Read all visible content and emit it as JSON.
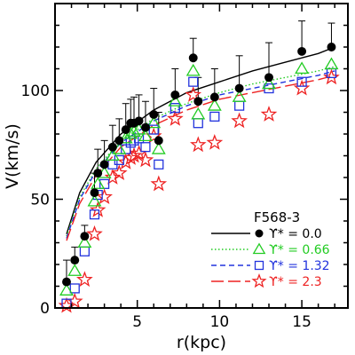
{
  "chart_data": {
    "type": "scatter",
    "title": "",
    "xlabel": "r(kpc)",
    "ylabel": "V(km/s)",
    "xlim": [
      0,
      17.8
    ],
    "ylim": [
      0,
      140
    ],
    "x_ticks": [
      5,
      10,
      15
    ],
    "y_ticks": [
      0,
      50,
      100
    ],
    "grid": false,
    "legend": {
      "placement": "bottom-right",
      "title": "F568-3",
      "entries": [
        {
          "label": "ϒ* = 0.0",
          "color": "#000000",
          "marker": "filled-circle",
          "line": "solid"
        },
        {
          "label": "ϒ* = 0.66",
          "color": "#22cc22",
          "marker": "triangle",
          "line": "dotted"
        },
        {
          "label": "ϒ* = 1.32",
          "color": "#2233dd",
          "marker": "square",
          "line": "dashed"
        },
        {
          "label": "ϒ* = 2.3",
          "color": "#ee2222",
          "marker": "star",
          "line": "long-dash"
        }
      ]
    },
    "series": [
      {
        "name": "ϒ* = 0.0",
        "color": "#000000",
        "marker": "filled-circle",
        "x": [
          0.7,
          1.2,
          1.8,
          2.4,
          2.6,
          3.0,
          3.5,
          3.9,
          4.3,
          4.6,
          4.8,
          5.1,
          5.5,
          6.0,
          6.3,
          7.3,
          8.4,
          8.7,
          9.7,
          11.2,
          13.0,
          15.0,
          16.8
        ],
        "y": [
          12,
          22,
          33,
          53,
          62,
          66,
          74,
          77,
          82,
          85,
          85,
          86,
          83,
          89,
          77,
          98,
          115,
          95,
          97,
          101,
          106,
          118,
          120
        ],
        "err_high": [
          22,
          28,
          38,
          62,
          73,
          77,
          84,
          87,
          94,
          96,
          97,
          98,
          95,
          101,
          90,
          110,
          124,
          106,
          110,
          116,
          122,
          132,
          131
        ]
      },
      {
        "name": "ϒ* = 0.66",
        "color": "#22cc22",
        "marker": "triangle",
        "x": [
          0.7,
          1.2,
          1.8,
          2.4,
          2.6,
          3.0,
          3.5,
          3.9,
          4.3,
          4.6,
          4.8,
          5.1,
          5.5,
          6.0,
          6.3,
          7.3,
          8.4,
          8.7,
          9.7,
          11.2,
          13.0,
          15.0,
          16.8
        ],
        "y": [
          8,
          17,
          30,
          49,
          57,
          62,
          70,
          73,
          78,
          80,
          81,
          82,
          79,
          85,
          73,
          95,
          109,
          89,
          93,
          97,
          103,
          110,
          112
        ]
      },
      {
        "name": "ϒ* = 1.32",
        "color": "#2233dd",
        "marker": "square",
        "x": [
          0.7,
          1.2,
          1.8,
          2.4,
          2.6,
          3.0,
          3.5,
          3.9,
          4.3,
          4.6,
          4.8,
          5.1,
          5.5,
          6.0,
          6.3,
          7.3,
          8.4,
          8.7,
          9.7,
          11.2,
          13.0,
          15.0,
          16.8
        ],
        "y": [
          2,
          9,
          26,
          43,
          52,
          57,
          66,
          68,
          73,
          76,
          77,
          78,
          74,
          82,
          66,
          92,
          104,
          85,
          88,
          93,
          101,
          104,
          108
        ]
      },
      {
        "name": "ϒ* = 2.3",
        "color": "#ee2222",
        "marker": "star",
        "x": [
          0.7,
          1.2,
          1.8,
          2.4,
          2.6,
          3.0,
          3.5,
          3.9,
          4.3,
          4.6,
          4.8,
          5.1,
          5.5,
          6.0,
          6.3,
          7.3,
          8.4,
          8.7,
          9.7,
          11.2,
          13.0,
          15.0,
          16.8
        ],
        "y": [
          1,
          3,
          13,
          34,
          45,
          51,
          60,
          62,
          67,
          69,
          70,
          71,
          68,
          79,
          57,
          87,
          98,
          75,
          76,
          86,
          89,
          101,
          106
        ]
      }
    ],
    "curves": [
      {
        "name": "ϒ* = 0.0",
        "style": "solid",
        "color": "#000000",
        "x": [
          0.7,
          1.5,
          2.5,
          4,
          6,
          8,
          10,
          12,
          14,
          16,
          17
        ],
        "y": [
          34,
          53,
          67,
          80,
          91,
          99,
          104,
          109,
          113,
          117,
          120
        ]
      },
      {
        "name": "ϒ* = 0.66",
        "style": "dotted",
        "color": "#22cc22",
        "x": [
          0.7,
          1.5,
          2.5,
          4,
          6,
          8,
          10,
          12,
          14,
          16,
          17
        ],
        "y": [
          33,
          51,
          64,
          77,
          87,
          94,
          99,
          103,
          106,
          109,
          111
        ]
      },
      {
        "name": "ϒ* = 1.32",
        "style": "dashed",
        "color": "#2233dd",
        "x": [
          0.7,
          1.5,
          2.5,
          4,
          6,
          8,
          10,
          12,
          14,
          16,
          17
        ],
        "y": [
          32,
          50,
          63,
          76,
          86,
          93,
          98,
          101,
          104,
          107,
          109
        ]
      },
      {
        "name": "ϒ* = 2.3",
        "style": "long-dash",
        "color": "#ee2222",
        "x": [
          0.7,
          1.5,
          2.5,
          4,
          6,
          8,
          10,
          12,
          14,
          16,
          17
        ],
        "y": [
          31,
          48,
          61,
          74,
          84,
          91,
          96,
          99,
          102,
          105,
          107
        ]
      }
    ]
  }
}
